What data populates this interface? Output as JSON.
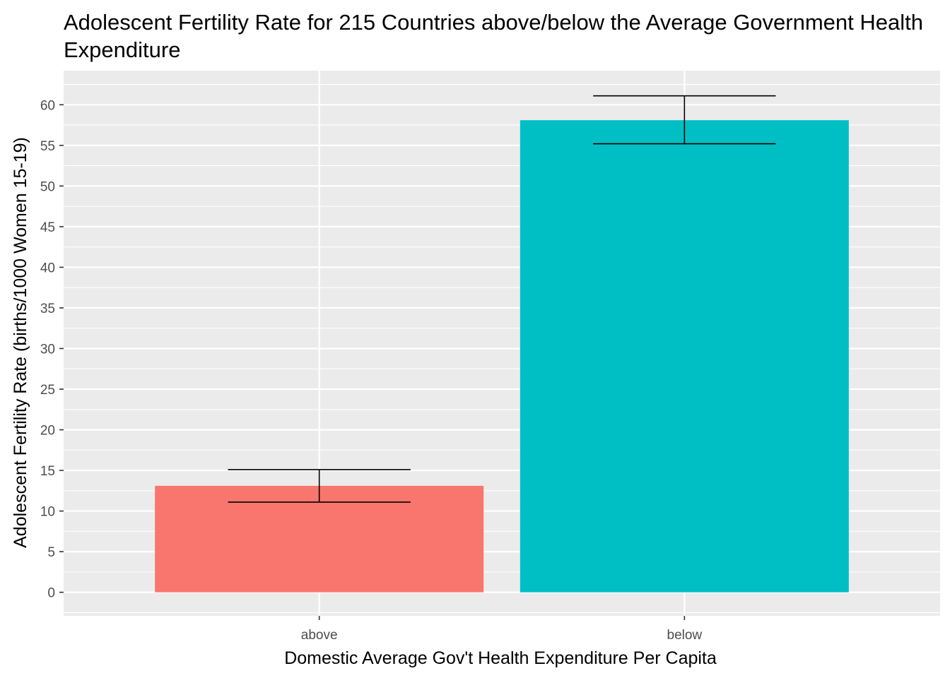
{
  "chart_data": {
    "type": "bar",
    "title": "Adolescent Fertility Rate for 215 Countries above/below the Average Government Health Expenditure",
    "xlabel": "Domestic Average Gov't Health Expenditure Per Capita",
    "ylabel": "Adolescent Fertility Rate (births/1000 Women 15-19)",
    "categories": [
      "above",
      "below"
    ],
    "values": [
      13.1,
      58.1
    ],
    "error_bars": [
      {
        "lower": 11.1,
        "upper": 15.1
      },
      {
        "lower": 55.2,
        "upper": 61.1
      }
    ],
    "colors": [
      "#F8766D",
      "#00BFC4"
    ],
    "ylim": [
      -2.9,
      64.2
    ],
    "yticks": [
      0,
      5,
      10,
      15,
      20,
      25,
      30,
      35,
      40,
      45,
      50,
      55,
      60
    ],
    "grid": true,
    "legend": "none",
    "panel_background": "#EBEBEB"
  }
}
